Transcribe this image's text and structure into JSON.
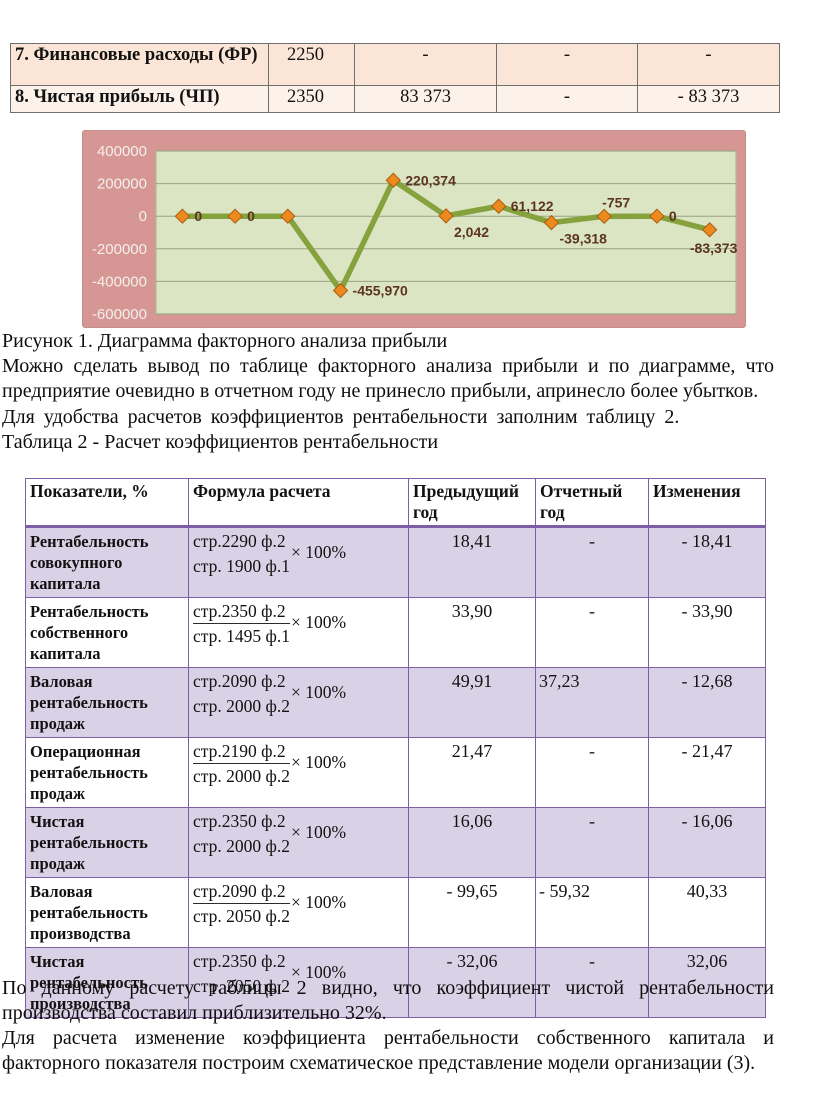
{
  "table1": {
    "rows": [
      {
        "label": "7. Финансовые расходы (ФР)",
        "code": "2250",
        "prev": "-",
        "report": "-",
        "change": "-"
      },
      {
        "label": "8. Чистая прибыль (ЧП)",
        "code": "2350",
        "prev": "83 373",
        "report": "-",
        "change": "- 83 373"
      }
    ]
  },
  "chart_data": {
    "type": "line",
    "title": "",
    "x": [
      "1",
      "2",
      "3",
      "4",
      "5",
      "6",
      "7",
      "8",
      "9",
      "10",
      "11"
    ],
    "values": [
      0,
      0,
      0,
      -455970,
      220374,
      2042,
      61122,
      -39318,
      -757,
      0,
      -83373
    ],
    "point_labels": [
      "0",
      "0",
      "",
      "-455,970",
      "220,374",
      "2,042",
      "61,122",
      "-39,318",
      "-757",
      "0",
      "-83,373"
    ],
    "label_pos": [
      "right",
      "right",
      "none",
      "right",
      "right",
      "below-right",
      "right",
      "below-right",
      "above-right",
      "right",
      "below"
    ],
    "ylim": [
      -600000,
      400000
    ],
    "ytick_step": 200000,
    "ytick_labels": [
      "400000",
      "200000",
      "0",
      "-200000",
      "-400000",
      "-600000"
    ],
    "grid": true,
    "legend": "none",
    "colors": {
      "chart_bg": "#d69693",
      "plot_bg": "#dbe5c3",
      "plot_border": "#aebb92",
      "gridline": "#97a383",
      "line": "#85a23d",
      "marker_fill": "#ec8a1f",
      "marker_stroke": "#a85c10",
      "data_label": "#5c3420",
      "tick_label": "#f5efee"
    }
  },
  "caption": "Рисунок 1. Диаграмма факторного анализа прибыли",
  "paragraphs": {
    "p1": "Можно сделать вывод по таблице факторного анализа прибыли и по диаграмме, что предприятие очевидно в отчетном году не принесло прибыли, апринесло более убытков.",
    "p2": "Для удобства расчетов коэффициентов рентабельности заполним таблицу 2."
  },
  "table2": {
    "title": "Таблица 2 - Расчет коэффициентов рентабельности",
    "headers": [
      "Показатели, %",
      "Формула расчета",
      "Предыдущий год",
      "Отчетный год",
      "Изменения"
    ],
    "rows": [
      {
        "name": "Рентабельность совокупного капитала",
        "num": "стр.2290 ф.2",
        "den": "стр. 1900 ф.1",
        "mult": "× 100%",
        "prev": "18,41",
        "report": "-",
        "change": "- 18,41"
      },
      {
        "name": "Рентабельность собственного капитала",
        "num": "стр.2350 ф.2",
        "den": "стр. 1495 ф.1",
        "mult": "× 100%",
        "prev": "33,90",
        "report": "-",
        "change": "- 33,90"
      },
      {
        "name": "Валовая рентабельность продаж",
        "num": "стр.2090 ф.2",
        "den": "стр. 2000 ф.2",
        "mult": "× 100%",
        "prev": "49,91",
        "report": "37,23",
        "change": "- 12,68"
      },
      {
        "name": "Операционная рентабельность продаж",
        "num": "стр.2190 ф.2",
        "den": "стр. 2000 ф.2",
        "mult": "× 100%",
        "prev": "21,47",
        "report": "-",
        "change": "- 21,47"
      },
      {
        "name": "Чистая рентабельность продаж",
        "num": "стр.2350 ф.2",
        "den": "стр. 2000 ф.2",
        "mult": "× 100%",
        "prev": "16,06",
        "report": "-",
        "change": "- 16,06"
      },
      {
        "name": "Валовая рентабельность производства",
        "num": "стр.2090 ф.2",
        "den": "стр. 2050 ф.2",
        "mult": "× 100%",
        "prev": "- 99,65",
        "report": "- 59,32",
        "change": "40,33"
      },
      {
        "name": "Чистая рентабельность производства",
        "num": "стр.2350 ф.2",
        "den": "стр. 2050 ф.2",
        "mult": "× 100%",
        "prev": "- 32,06",
        "report": "-",
        "change": "32,06"
      }
    ]
  },
  "bottom": {
    "p1": "По данному расчету таблицы 2 видно, что коэффициент чистой рентабельности производства составил приблизительно 32%.",
    "p2": "Для расчета изменение коэффициента рентабельности собственного капитала и факторного показателя построим схематическое представление модели организации (3)."
  }
}
